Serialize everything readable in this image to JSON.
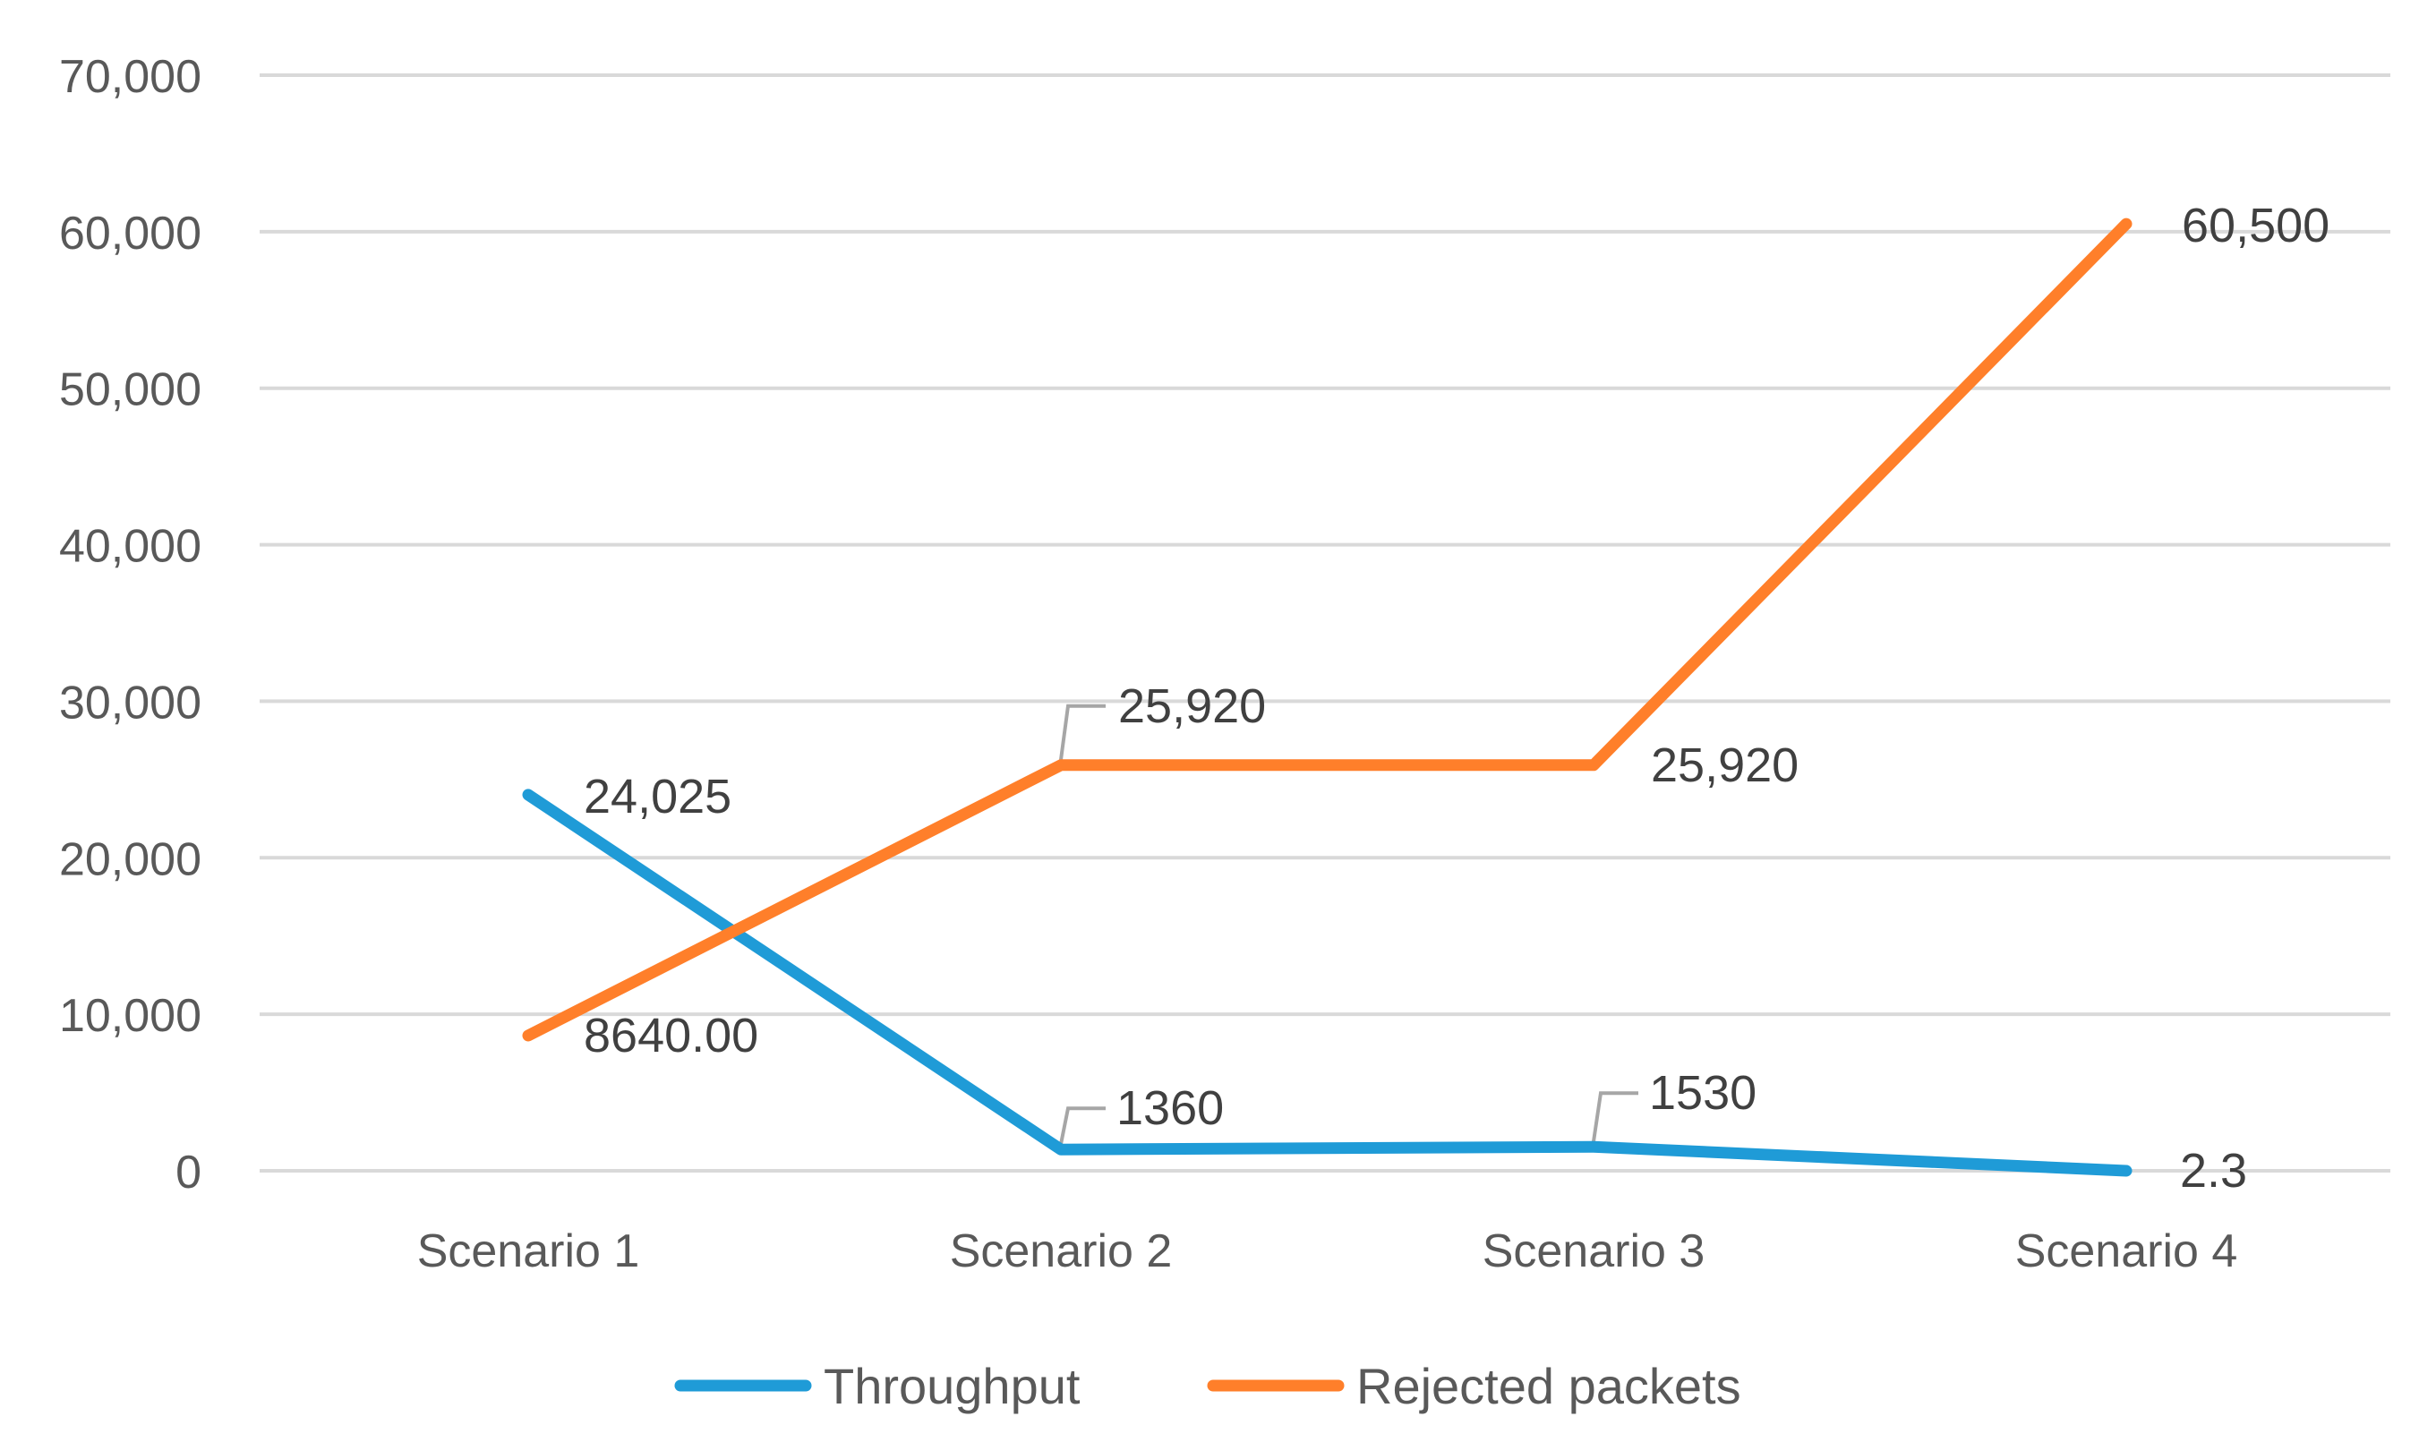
{
  "chart_data": {
    "type": "line",
    "categories": [
      "Scenario 1",
      "Scenario 2",
      "Scenario 3",
      "Scenario 4"
    ],
    "series": [
      {
        "name": "Throughput",
        "color": "#1f9bd7",
        "values": [
          24025,
          1360,
          1530,
          2.3
        ],
        "labels": [
          "24,025",
          "1360",
          "1530",
          "2.3"
        ]
      },
      {
        "name": "Rejected packets",
        "color": "#ff7f2a",
        "values": [
          8640,
          25920,
          25920,
          60500
        ],
        "labels": [
          "8640.00",
          "25,920",
          "25,920",
          "60,500"
        ]
      }
    ],
    "ylim": [
      0,
      70000
    ],
    "yticks": [
      0,
      10000,
      20000,
      30000,
      40000,
      50000,
      60000,
      70000
    ],
    "ytick_labels": [
      "0",
      "10,000",
      "20,000",
      "30,000",
      "40,000",
      "50,000",
      "60,000",
      "70,000"
    ],
    "grid": true,
    "legend_position": "bottom"
  }
}
